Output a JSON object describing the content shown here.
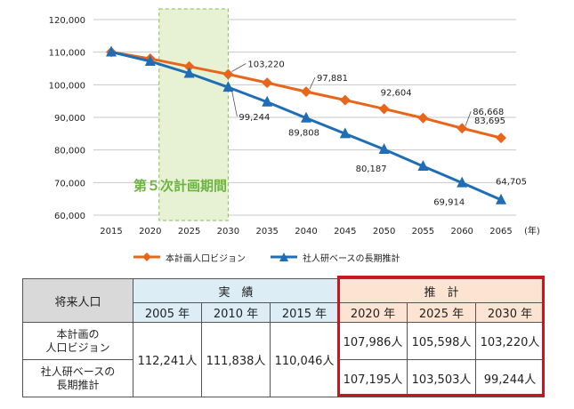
{
  "chart_data": {
    "type": "line",
    "categories": [
      "2015",
      "2020",
      "2025",
      "2030",
      "2035",
      "2040",
      "2045",
      "2050",
      "2055",
      "2060",
      "2065"
    ],
    "x_unit": "(年)",
    "ylim": [
      60000,
      120000
    ],
    "yticks": [
      "60,000",
      "70,000",
      "80,000",
      "90,000",
      "100,000",
      "110,000",
      "120,000"
    ],
    "highlight_label": "第５次計画期間",
    "highlight_range": [
      "2020",
      "2030"
    ],
    "series": [
      {
        "name": "本計画人口ビジョン",
        "color": "#e8661c",
        "marker": "diamond",
        "values": [
          110046,
          107986,
          105598,
          103220,
          100600,
          97881,
          95300,
          92604,
          89800,
          86668,
          83695
        ]
      },
      {
        "name": "社人研ベースの長期推計",
        "color": "#1f6eb5",
        "marker": "triangle",
        "values": [
          110046,
          107195,
          103503,
          99244,
          94700,
          89808,
          85000,
          80187,
          75000,
          69914,
          64705
        ]
      }
    ],
    "annotations": [
      {
        "text": "103,220",
        "series": 0,
        "category": "2030"
      },
      {
        "text": "97,881",
        "series": 0,
        "category": "2040"
      },
      {
        "text": "92,604",
        "series": 0,
        "category": "2050"
      },
      {
        "text": "86,668",
        "series": 0,
        "category": "2060"
      },
      {
        "text": "83,695",
        "series": 0,
        "category": "2065"
      },
      {
        "text": "99,244",
        "series": 1,
        "category": "2030"
      },
      {
        "text": "89,808",
        "series": 1,
        "category": "2040"
      },
      {
        "text": "80,187",
        "series": 1,
        "category": "2050"
      },
      {
        "text": "69,914",
        "series": 1,
        "category": "2060"
      },
      {
        "text": "64,705",
        "series": 1,
        "category": "2065"
      }
    ]
  },
  "table": {
    "corner": "将来人口",
    "actual_label": "実　績",
    "forecast_label": "推　計",
    "years": [
      "2005 年",
      "2010 年",
      "2015 年",
      "2020 年",
      "2025 年",
      "2030 年"
    ],
    "rows": [
      {
        "label_line1": "本計画の",
        "label_line2": "人口ビジョン",
        "forecast": [
          "107,986人",
          "105,598人",
          "103,220人"
        ]
      },
      {
        "label_line1": "社人研ベースの",
        "label_line2": "長期推計",
        "forecast": [
          "107,195人",
          "103,503人",
          "99,244人"
        ]
      }
    ],
    "actual_merged": [
      "112,241人",
      "111,838人",
      "110,046人"
    ]
  }
}
